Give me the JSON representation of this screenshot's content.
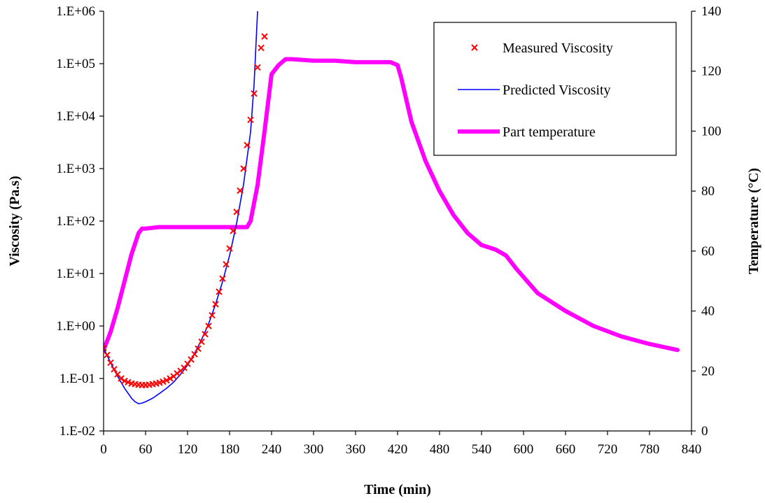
{
  "chart_data": {
    "type": "line",
    "title": "",
    "xlabel": "Time (min)",
    "ylabel": "Viscosity (Pa.s)",
    "y2label": "Temperature (°C)",
    "xlim": [
      0,
      840
    ],
    "ylim": [
      0.01,
      1000000
    ],
    "y2lim": [
      0,
      140
    ],
    "yscale": "log",
    "grid": false,
    "legend_position": "top-right",
    "x_ticks": [
      "0",
      "60",
      "120",
      "180",
      "240",
      "300",
      "360",
      "420",
      "480",
      "540",
      "600",
      "660",
      "720",
      "780",
      "840"
    ],
    "y_ticks": [
      "1.E-02",
      "1.E-01",
      "1.E+00",
      "1.E+01",
      "1.E+02",
      "1.E+03",
      "1.E+04",
      "1.E+05",
      "1.E+06"
    ],
    "y2_ticks": [
      "0",
      "20",
      "40",
      "60",
      "80",
      "100",
      "120",
      "140"
    ],
    "series": [
      {
        "name": "Measured Viscosity",
        "kind": "scatter",
        "axis": "left",
        "color": "#ff0000",
        "marker": "x",
        "x": [
          0,
          5,
          10,
          15,
          20,
          25,
          30,
          35,
          40,
          45,
          50,
          55,
          60,
          65,
          70,
          75,
          80,
          85,
          90,
          95,
          100,
          105,
          110,
          115,
          120,
          125,
          130,
          135,
          140,
          145,
          150,
          155,
          160,
          165,
          170,
          175,
          180,
          185,
          190,
          195,
          200,
          205,
          210,
          215,
          220,
          225,
          230
        ],
        "y": [
          0.38,
          0.28,
          0.2,
          0.15,
          0.12,
          0.1,
          0.09,
          0.085,
          0.08,
          0.078,
          0.076,
          0.075,
          0.075,
          0.076,
          0.078,
          0.08,
          0.083,
          0.087,
          0.092,
          0.1,
          0.11,
          0.125,
          0.14,
          0.16,
          0.19,
          0.23,
          0.29,
          0.37,
          0.5,
          0.7,
          1.0,
          1.6,
          2.6,
          4.5,
          8,
          15,
          30,
          65,
          150,
          380,
          1000,
          2800,
          8500,
          27000,
          85000,
          200000,
          330000
        ]
      },
      {
        "name": "Predicted Viscosity",
        "kind": "line",
        "axis": "left",
        "color": "#0000ff",
        "x": [
          0,
          10,
          20,
          30,
          40,
          45,
          50,
          55,
          60,
          70,
          80,
          90,
          100,
          110,
          120,
          130,
          140,
          150,
          160,
          170,
          180,
          190,
          200,
          210,
          215,
          220
        ],
        "y": [
          0.38,
          0.2,
          0.11,
          0.065,
          0.042,
          0.036,
          0.033,
          0.034,
          0.036,
          0.042,
          0.052,
          0.065,
          0.085,
          0.12,
          0.18,
          0.3,
          0.55,
          1.1,
          2.6,
          7,
          22,
          90,
          500,
          5000,
          40000,
          1000000
        ]
      },
      {
        "name": "Part temperature",
        "kind": "line",
        "axis": "right",
        "color": "#ff00ff",
        "x": [
          0,
          10,
          20,
          30,
          40,
          50,
          55,
          60,
          80,
          100,
          120,
          140,
          160,
          180,
          195,
          205,
          210,
          220,
          230,
          240,
          250,
          260,
          270,
          300,
          330,
          360,
          390,
          410,
          420,
          425,
          440,
          460,
          480,
          500,
          520,
          540,
          560,
          575,
          590,
          620,
          660,
          700,
          740,
          780,
          820
        ],
        "y": [
          27,
          33,
          41,
          50,
          59,
          66,
          67.5,
          67.5,
          68,
          68,
          68,
          68,
          68,
          68,
          68,
          68,
          70,
          82,
          100,
          119,
          122,
          124,
          124,
          123.5,
          123.5,
          123,
          123,
          123,
          122,
          118,
          103,
          90,
          80,
          72,
          66,
          62,
          60.5,
          58.5,
          54,
          46,
          40,
          35,
          31.5,
          29,
          27
        ]
      }
    ]
  }
}
